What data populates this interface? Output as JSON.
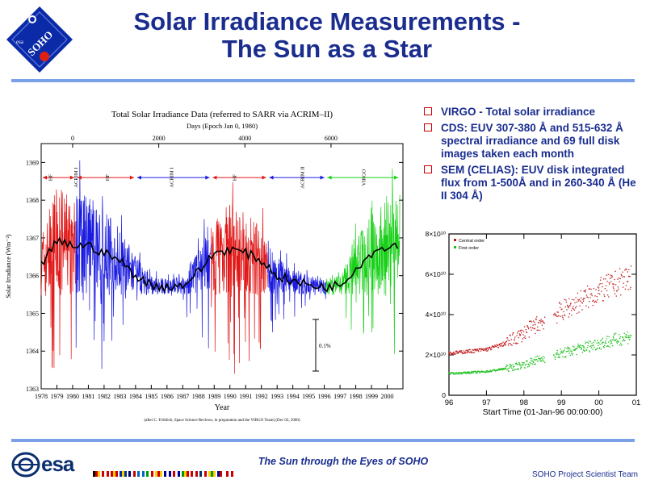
{
  "logo": {
    "text": "SOHO"
  },
  "title": {
    "line1": "Solar Irradiance Measurements -",
    "line2": "The Sun as a Star"
  },
  "bullets": [
    "VIRGO - Total solar irradiance",
    "CDS: EUV 307-380 Å and 515-632 Å spectral irradiance and 69 full disk images taken each month",
    "SEM (CELIAS): EUV disk integrated flux from 1-500Å and in 260-340 Å (He II 304 Å)"
  ],
  "colors": {
    "title": "#1a2d8f",
    "rule": "#7aa0e8",
    "bullet_box": "#cc0000",
    "red": "#e01818",
    "blue": "#1a1ae0",
    "green": "#18d018"
  },
  "chart_data": [
    {
      "type": "line",
      "title": "Total Solar Irradiance Data (referred to SARR via ACRIM–II)",
      "top_axis_label": "Days (Epoch Jan 0, 1980)",
      "top_ticks": [
        "0",
        "2000",
        "4000",
        "6000"
      ],
      "ylabel": "Solar Irradiance (Wm⁻²)",
      "xlabel": "Year",
      "ylim": [
        1363,
        1369.5
      ],
      "yticks": [
        1363,
        1364,
        1365,
        1366,
        1367,
        1368,
        1369
      ],
      "xticks": [
        "1978",
        "1979",
        "1980",
        "1981",
        "1982",
        "1983",
        "1984",
        "1985",
        "1986",
        "1987",
        "1988",
        "1989",
        "1990",
        "1991",
        "1992",
        "1993",
        "1994",
        "1995",
        "1996",
        "1997",
        "1998",
        "1999",
        "2000"
      ],
      "instrument_labels": [
        "HF",
        "ACRIM I",
        "HF",
        "ACRIM I",
        "HF",
        "ACRIM II",
        "VIRGO"
      ],
      "scale_bar_label": "0.1%",
      "footnote": "(after C. Fröhlich, Space Science Reviews, in preparation and the VIRGO Team) (Dec 02, 2000)",
      "series": [
        {
          "color": "red",
          "segments": [
            [
              1978.0,
              1980.2
            ],
            [
              1988.8,
              1992.4
            ]
          ]
        },
        {
          "color": "blue",
          "segments": [
            [
              1980.2,
              1988.8
            ],
            [
              1992.4,
              1996.1
            ]
          ]
        },
        {
          "color": "green",
          "segments": [
            [
              1996.1,
              2000.8
            ]
          ]
        }
      ],
      "smoothed": [
        [
          1978.0,
          1366.3
        ],
        [
          1979.0,
          1366.9
        ],
        [
          1980.0,
          1366.8
        ],
        [
          1981.0,
          1366.8
        ],
        [
          1982.0,
          1366.6
        ],
        [
          1983.0,
          1366.4
        ],
        [
          1984.0,
          1366.0
        ],
        [
          1985.0,
          1365.75
        ],
        [
          1986.0,
          1365.7
        ],
        [
          1987.0,
          1365.75
        ],
        [
          1988.0,
          1366.1
        ],
        [
          1989.0,
          1366.6
        ],
        [
          1990.0,
          1366.7
        ],
        [
          1991.0,
          1366.6
        ],
        [
          1992.0,
          1366.4
        ],
        [
          1993.0,
          1366.0
        ],
        [
          1994.0,
          1365.85
        ],
        [
          1995.0,
          1365.75
        ],
        [
          1996.0,
          1365.7
        ],
        [
          1997.0,
          1365.75
        ],
        [
          1998.0,
          1366.2
        ],
        [
          1999.0,
          1366.6
        ],
        [
          2000.0,
          1366.8
        ]
      ]
    },
    {
      "type": "scatter",
      "ylim": [
        0,
        80000000000.0
      ],
      "yticks": [
        "0",
        "2×10¹⁰",
        "4×10¹⁰",
        "6×10¹⁰",
        "8×10¹⁰"
      ],
      "xticks": [
        "96",
        "97",
        "98",
        "99",
        "00",
        "01"
      ],
      "xlabel": "Start Time (01-Jan-96 00:00:00)",
      "series": [
        {
          "name": "Central order",
          "color": "#c01818",
          "points": [
            [
              96.0,
              21000000000.0
            ],
            [
              96.5,
              22000000000.0
            ],
            [
              97.0,
              23000000000.0
            ],
            [
              97.5,
              26000000000.0
            ],
            [
              97.9,
              30000000000.0
            ],
            [
              98.3,
              35000000000.0
            ],
            [
              98.8,
              40000000000.0
            ],
            [
              99.2,
              44000000000.0
            ],
            [
              99.6,
              48000000000.0
            ],
            [
              100.0,
              52000000000.0
            ],
            [
              100.4,
              55000000000.0
            ],
            [
              100.8,
              59000000000.0
            ]
          ]
        },
        {
          "name": "First order",
          "color": "#18c018",
          "points": [
            [
              96.0,
              11000000000.0
            ],
            [
              96.5,
              11500000000.0
            ],
            [
              97.0,
              12000000000.0
            ],
            [
              97.5,
              13500000000.0
            ],
            [
              97.9,
              15000000000.0
            ],
            [
              98.3,
              17500000000.0
            ],
            [
              98.8,
              20000000000.0
            ],
            [
              99.2,
              22000000000.0
            ],
            [
              99.6,
              24000000000.0
            ],
            [
              100.0,
              26000000000.0
            ],
            [
              100.4,
              27500000000.0
            ],
            [
              100.8,
              29500000000.0
            ]
          ]
        }
      ]
    }
  ],
  "footer": {
    "esa_text": "esa",
    "center": "The Sun through the Eyes of SOHO",
    "right": "SOHO Project Scientist Team"
  }
}
